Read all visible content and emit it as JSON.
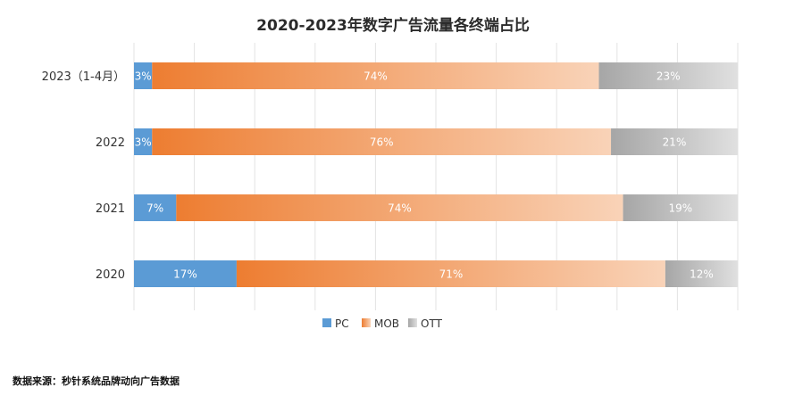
{
  "chart_data": {
    "type": "bar",
    "orientation": "horizontal",
    "stacked": true,
    "normalized_100": true,
    "title": "2020-2023年数字广告流量各终端占比",
    "categories": [
      "2023（1-4月）",
      "2022",
      "2021",
      "2020"
    ],
    "series": [
      {
        "name": "PC",
        "values": [
          3,
          3,
          7,
          17
        ],
        "labels": [
          "3%",
          "3%",
          "7%",
          "17%"
        ],
        "color": "#5b9bd5"
      },
      {
        "name": "MOB",
        "values": [
          74,
          76,
          74,
          71
        ],
        "labels": [
          "74%",
          "76%",
          "74%",
          "71%"
        ],
        "color": "#ed7d31",
        "gradient_end": "#f9d3b8"
      },
      {
        "name": "OTT",
        "values": [
          23,
          21,
          19,
          12
        ],
        "labels": [
          "23%",
          "21%",
          "19%",
          "12%"
        ],
        "color": "#a6a6a6",
        "gradient_end": "#e0e0e0"
      }
    ],
    "xlim": [
      0,
      100
    ],
    "grid": true,
    "legend_position": "bottom"
  },
  "source_note": "数据来源：秒针系统品牌动向广告数据"
}
